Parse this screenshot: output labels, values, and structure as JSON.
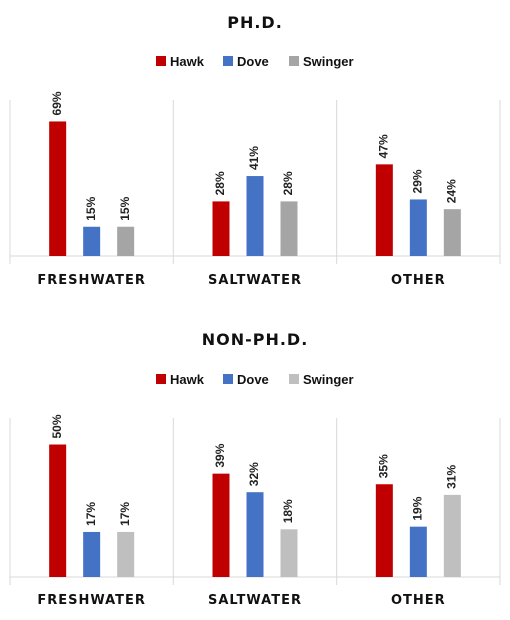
{
  "chart_data": [
    {
      "type": "bar",
      "title": "PH.D.",
      "categories": [
        "FRESHWATER",
        "SALTWATER",
        "OTHER"
      ],
      "series": [
        {
          "name": "Hawk",
          "values": [
            69,
            28,
            47
          ],
          "labels": [
            "69%",
            "28%",
            "47%"
          ],
          "color": "#c00000"
        },
        {
          "name": "Dove",
          "values": [
            15,
            41,
            29
          ],
          "labels": [
            "15%",
            "41%",
            "29%"
          ],
          "color": "#4472c4"
        },
        {
          "name": "Swinger",
          "values": [
            15,
            28,
            24
          ],
          "labels": [
            "15%",
            "28%",
            "24%"
          ],
          "color": "#a5a5a5"
        }
      ],
      "ylim": [
        0,
        80
      ],
      "legend": "top"
    },
    {
      "type": "bar",
      "title": "NON-PH.D.",
      "categories": [
        "FRESHWATER",
        "SALTWATER",
        "OTHER"
      ],
      "series": [
        {
          "name": "Hawk",
          "values": [
            50,
            39,
            35
          ],
          "labels": [
            "50%",
            "39%",
            "35%"
          ],
          "color": "#c00000"
        },
        {
          "name": "Dove",
          "values": [
            17,
            32,
            19
          ],
          "labels": [
            "17%",
            "32%",
            "19%"
          ],
          "color": "#4472c4"
        },
        {
          "name": "Swinger",
          "values": [
            17,
            18,
            31
          ],
          "labels": [
            "17%",
            "18%",
            "31%"
          ],
          "color": "#bfbfbf"
        }
      ],
      "ylim": [
        0,
        60
      ],
      "legend": "top"
    }
  ]
}
